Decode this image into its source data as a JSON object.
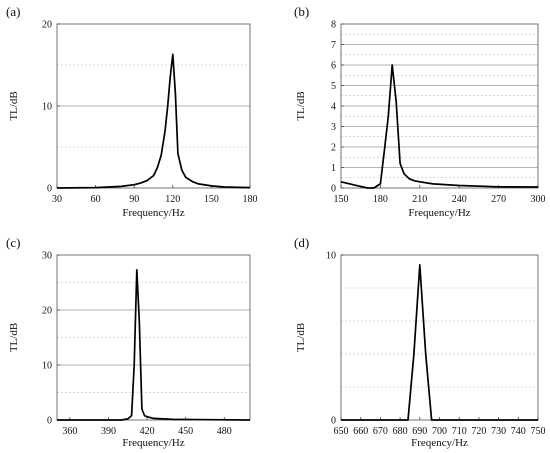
{
  "chart_data": [
    {
      "panel_label": "(a)",
      "type": "line",
      "xlabel": "Frequency/Hz",
      "ylabel": "TL/dB",
      "xlim": [
        30,
        180
      ],
      "ylim": [
        0,
        20
      ],
      "xticks": [
        30,
        60,
        90,
        120,
        150,
        180
      ],
      "yticks": [
        0,
        10,
        20
      ],
      "grid": true,
      "series": [
        {
          "x": [
            30,
            60,
            80,
            90,
            95,
            100,
            105,
            108,
            111,
            114,
            116,
            118,
            120,
            122,
            124,
            127,
            130,
            135,
            140,
            150,
            160,
            180
          ],
          "y": [
            0.0,
            0.05,
            0.2,
            0.4,
            0.6,
            0.9,
            1.5,
            2.5,
            4.0,
            7.0,
            10.0,
            13.5,
            16.3,
            11.5,
            4.2,
            2.2,
            1.3,
            0.8,
            0.5,
            0.25,
            0.12,
            0.05
          ]
        }
      ]
    },
    {
      "panel_label": "(b)",
      "type": "line",
      "xlabel": "Frequency/Hz",
      "ylabel": "TL/dB",
      "xlim": [
        150,
        300
      ],
      "ylim": [
        0,
        8
      ],
      "xticks": [
        150,
        180,
        210,
        240,
        270,
        300
      ],
      "yticks": [
        0,
        1,
        2,
        3,
        4,
        5,
        6,
        7,
        8
      ],
      "grid": true,
      "series": [
        {
          "x": [
            150,
            160,
            170,
            175,
            180,
            183,
            186,
            189,
            192,
            195,
            198,
            202,
            206,
            210,
            220,
            240,
            270,
            300
          ],
          "y": [
            0.3,
            0.15,
            0.0,
            0.0,
            0.2,
            1.8,
            3.5,
            6.0,
            4.2,
            1.2,
            0.7,
            0.45,
            0.35,
            0.3,
            0.2,
            0.12,
            0.06,
            0.05
          ]
        }
      ]
    },
    {
      "panel_label": "(c)",
      "type": "line",
      "xlabel": "Frequency/Hz",
      "ylabel": "TL/dB",
      "xlim": [
        350,
        500
      ],
      "ylim": [
        0,
        30
      ],
      "xticks": [
        360,
        390,
        420,
        450,
        480
      ],
      "yticks": [
        0,
        10,
        20,
        30
      ],
      "grid": true,
      "series": [
        {
          "x": [
            350,
            400,
            405,
            408,
            410,
            412,
            414,
            416,
            418,
            420,
            425,
            440,
            470,
            500
          ],
          "y": [
            0.0,
            0.0,
            0.2,
            0.8,
            10.0,
            27.3,
            18.0,
            2.0,
            0.8,
            0.6,
            0.3,
            0.1,
            0.05,
            0.0
          ]
        }
      ]
    },
    {
      "panel_label": "(d)",
      "type": "line",
      "xlabel": "Freqency/Hz",
      "ylabel": "TL/dB",
      "xlim": [
        650,
        750
      ],
      "ylim": [
        0,
        10
      ],
      "xticks": [
        650,
        660,
        670,
        680,
        690,
        700,
        710,
        720,
        730,
        740,
        750
      ],
      "yticks": [
        0,
        10
      ],
      "grid": true,
      "series": [
        {
          "x": [
            650,
            684,
            687,
            690,
            693,
            696,
            700,
            750
          ],
          "y": [
            0.0,
            0.0,
            4.0,
            9.4,
            4.0,
            0.0,
            0.0,
            0.0
          ]
        }
      ]
    }
  ]
}
